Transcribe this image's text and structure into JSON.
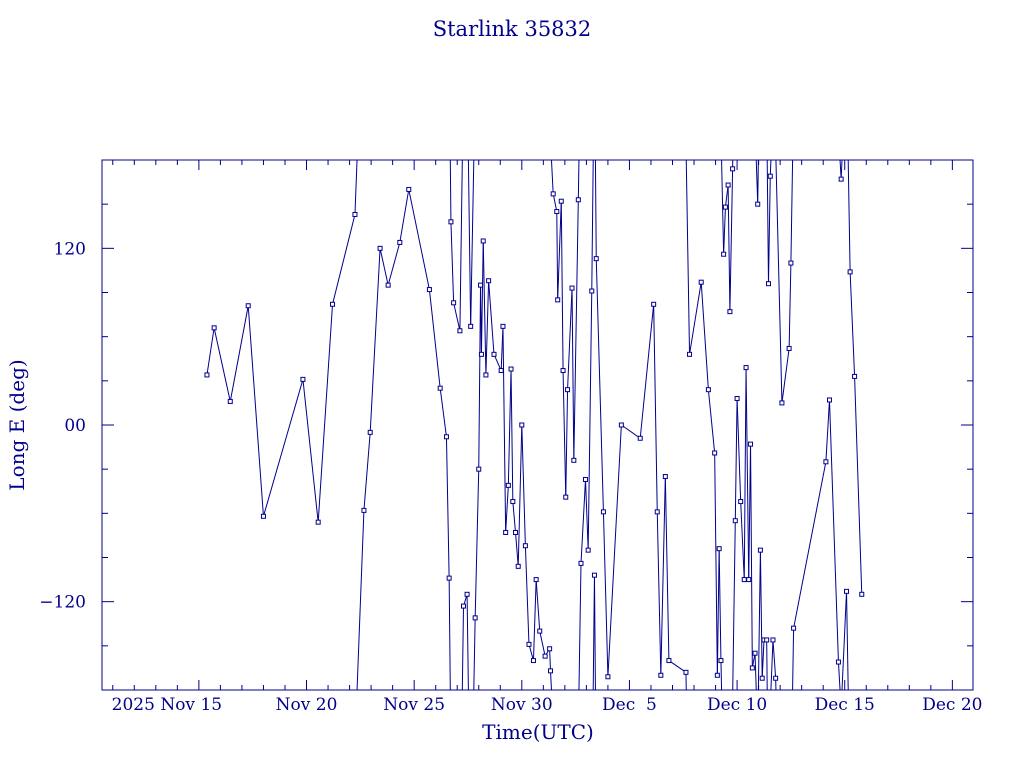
{
  "chart_data": {
    "type": "line",
    "title": "Starlink 35832",
    "xlabel": "Time(UTC)",
    "ylabel": "Long E (deg)",
    "x_tick_labels": [
      "2025 Nov 15",
      "Nov 20",
      "Nov 25",
      "Nov 30",
      "Dec  5",
      "Dec 10",
      "Dec 15",
      "Dec 20"
    ],
    "y_tick_labels": [
      "120",
      "00",
      "−120"
    ],
    "y_ticks": [
      120,
      0,
      -120
    ],
    "xlim": [
      "2025-11-10T12:00",
      "2025-12-20T23:00"
    ],
    "ylim": [
      -180,
      180
    ],
    "grid": false,
    "color": "#00008b",
    "series": [
      {
        "x": [
          "2025-11-15T09:00",
          "2025-11-15T17:00",
          "2025-11-16T11:00",
          "2025-11-17T07:00",
          "2025-11-18T00:00",
          "2025-11-19T20:00",
          "2025-11-20T13:00",
          "2025-11-21T05:00",
          "2025-11-22T06:00",
          "2025-11-22T16:00",
          "2025-11-22T23:00",
          "2025-11-23T10:00",
          "2025-11-23T19:00",
          "2025-11-24T08:00",
          "2025-11-24T18:00",
          "2025-11-25T17:00",
          "2025-11-26T05:00",
          "2025-11-26T12:00",
          "2025-11-26T15:00",
          "2025-11-26T17:00",
          "2025-11-26T20:00",
          "2025-11-27T03:00",
          "2025-11-27T07:00",
          "2025-11-27T11:00",
          "2025-11-27T15:00",
          "2025-11-27T20:00",
          "2025-11-28T00:00",
          "2025-11-28T02:00",
          "2025-11-28T03:00",
          "2025-11-28T05:00",
          "2025-11-28T08:00",
          "2025-11-28T11:00",
          "2025-11-28T17:00",
          "2025-11-29T01:00",
          "2025-11-29T03:00",
          "2025-11-29T06:00",
          "2025-11-29T09:00",
          "2025-11-29T12:00",
          "2025-11-29T14:00",
          "2025-11-29T17:00",
          "2025-11-29T20:00",
          "2025-11-30T00:00",
          "2025-11-30T04:00",
          "2025-11-30T08:00",
          "2025-11-30T13:00",
          "2025-11-30T16:00",
          "2025-11-30T20:00",
          "2025-12-01T02:00",
          "2025-12-01T07:00",
          "2025-12-01T08:00",
          "2025-12-01T11:00",
          "2025-12-01T15:00",
          "2025-12-01T16:00",
          "2025-12-01T20:00",
          "2025-12-01T22:00",
          "2025-12-02T01:00",
          "2025-12-02T03:00",
          "2025-12-02T08:00",
          "2025-12-02T10:00",
          "2025-12-02T15:00",
          "2025-12-02T18:00",
          "2025-12-02T23:00",
          "2025-12-03T02:00",
          "2025-12-03T06:00",
          "2025-12-03T09:00",
          "2025-12-03T11:00",
          "2025-12-03T19:00",
          "2025-12-04T00:00",
          "2025-12-04T15:00",
          "2025-12-05T12:00",
          "2025-12-06T03:00",
          "2025-12-06T07:00",
          "2025-12-06T11:00",
          "2025-12-06T16:00",
          "2025-12-06T20:00",
          "2025-12-07T15:00",
          "2025-12-07T19:00",
          "2025-12-08T08:00",
          "2025-12-08T16:00",
          "2025-12-08T23:00",
          "2025-12-09T02:00",
          "2025-12-09T04:00",
          "2025-12-09T06:00",
          "2025-12-09T09:00",
          "2025-12-09T11:00",
          "2025-12-09T14:00",
          "2025-12-09T16:00",
          "2025-12-09T19:00",
          "2025-12-09T22:00",
          "2025-12-10T00:00",
          "2025-12-10T04:00",
          "2025-12-10T08:00",
          "2025-12-10T10:00",
          "2025-12-10T13:00",
          "2025-12-10T15:00",
          "2025-12-10T17:00",
          "2025-12-10T20:00",
          "2025-12-10T23:00",
          "2025-12-11T02:00",
          "2025-12-11T04:00",
          "2025-12-11T06:00",
          "2025-12-11T09:00",
          "2025-12-11T11:00",
          "2025-12-11T13:00",
          "2025-12-11T16:00",
          "2025-12-11T19:00",
          "2025-12-12T02:00",
          "2025-12-12T10:00",
          "2025-12-12T12:00",
          "2025-12-12T15:00",
          "2025-12-14T03:00",
          "2025-12-14T07:00",
          "2025-12-14T17:00",
          "2025-12-14T20:00",
          "2025-12-15T02:00",
          "2025-12-15T06:00",
          "2025-12-15T11:00",
          "2025-12-15T19:00"
        ],
        "y": [
          34,
          66,
          16,
          81,
          -62,
          31,
          -66,
          82,
          143,
          -58,
          -5,
          120,
          95,
          124,
          160,
          92,
          25,
          -8,
          -104,
          138,
          83,
          64,
          -123,
          -115,
          67,
          -131,
          -30,
          95,
          48,
          125,
          34,
          98,
          48,
          37,
          67,
          -73,
          -41,
          38,
          -52,
          -73,
          -96,
          0,
          -82,
          -149,
          -160,
          -105,
          -140,
          -157,
          -152,
          -167,
          157,
          145,
          85,
          152,
          37,
          -49,
          24,
          93,
          -24,
          153,
          -94,
          -37,
          -85,
          91,
          -102,
          113,
          -59,
          -171,
          0,
          -9,
          82,
          -59,
          -170,
          -35,
          -160,
          -168,
          48,
          97,
          24,
          -19,
          -170,
          -84,
          -160,
          116,
          148,
          163,
          77,
          174,
          -65,
          18,
          -52,
          -105,
          39,
          -105,
          -13,
          -165,
          -155,
          150,
          -85,
          -172,
          -146,
          -146,
          96,
          169,
          -146,
          -172,
          15,
          52,
          110,
          -138,
          -25,
          17,
          -161,
          167,
          -113,
          104,
          33,
          -115
        ]
      }
    ]
  }
}
